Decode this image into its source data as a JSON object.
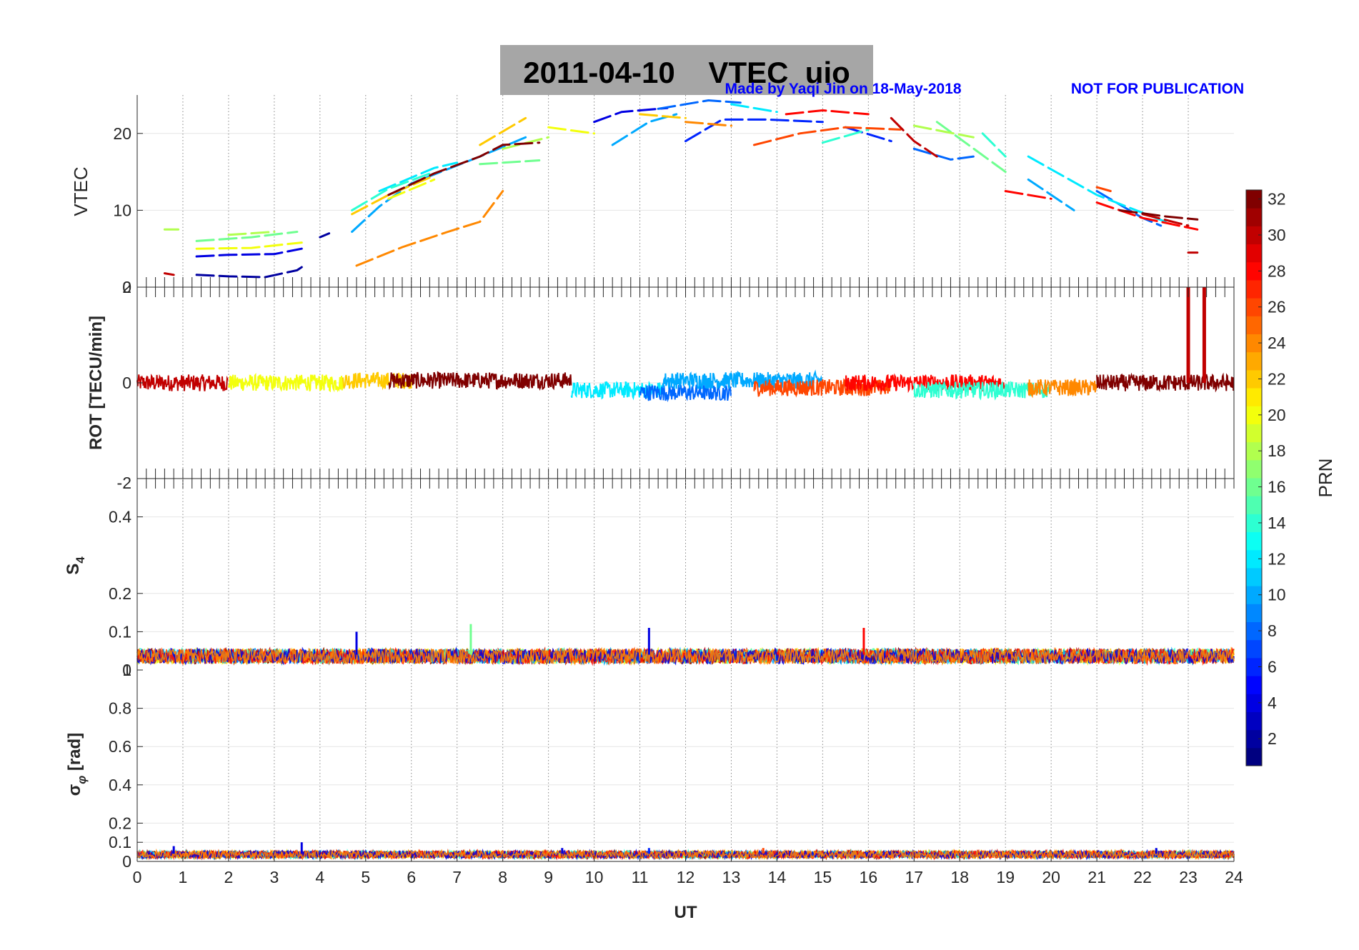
{
  "title": "2011-04-10    VTEC  uio",
  "credit": "Made by Yaqi Jin on 18-May-2018",
  "notice": "NOT FOR PUBLICATION",
  "colors": {
    "title_box": "#a6a6a6",
    "credit": "#0000ff",
    "axis": "#262626"
  },
  "chart_data": [
    {
      "type": "line",
      "panel": "VTEC",
      "ylabel": "VTEC",
      "ylim": [
        0,
        25
      ],
      "yticks": [
        0,
        10,
        20
      ],
      "ytick_labels": [
        "0",
        "10",
        "20"
      ],
      "xlim": [
        0,
        24
      ],
      "series": [
        {
          "name": "PRN 2",
          "prn": 2,
          "segments": [
            [
              [
                1.3,
                1.6
              ],
              [
                2.0,
                1.4
              ],
              [
                2.8,
                1.3
              ],
              [
                3.5,
                2.2
              ],
              [
                3.6,
                2.6
              ]
            ],
            [
              [
                4.0,
                6.5
              ],
              [
                4.2,
                7.0
              ]
            ]
          ]
        },
        {
          "name": "PRN 4",
          "prn": 4,
          "segments": [
            [
              [
                1.3,
                4.0
              ],
              [
                2.0,
                4.2
              ],
              [
                3.0,
                4.3
              ],
              [
                3.6,
                5.0
              ]
            ],
            [
              [
                10.0,
                21.5
              ],
              [
                10.6,
                22.8
              ],
              [
                11.6,
                23.3
              ]
            ]
          ]
        },
        {
          "name": "PRN 6",
          "prn": 6,
          "segments": [
            [
              [
                12.0,
                19.0
              ],
              [
                12.8,
                21.8
              ],
              [
                13.8,
                21.8
              ],
              [
                15.0,
                21.5
              ]
            ],
            [
              [
                15.5,
                20.8
              ],
              [
                16.5,
                19.0
              ]
            ]
          ]
        },
        {
          "name": "PRN 8",
          "prn": 8,
          "segments": [
            [
              [
                11.4,
                23.2
              ],
              [
                12.5,
                24.3
              ],
              [
                13.2,
                24.0
              ]
            ],
            [
              [
                17.0,
                18.0
              ],
              [
                17.8,
                16.6
              ],
              [
                18.3,
                17.0
              ]
            ],
            [
              [
                21.0,
                12.5
              ],
              [
                22.0,
                9.0
              ],
              [
                22.4,
                8.0
              ]
            ]
          ]
        },
        {
          "name": "PRN 10",
          "prn": 10,
          "segments": [
            [
              [
                4.7,
                7.2
              ],
              [
                5.3,
                10.5
              ],
              [
                6.0,
                13.5
              ],
              [
                7.5,
                17.0
              ],
              [
                8.5,
                19.5
              ]
            ],
            [
              [
                10.4,
                18.5
              ],
              [
                11.2,
                21.5
              ],
              [
                11.8,
                22.5
              ]
            ],
            [
              [
                19.5,
                14.0
              ],
              [
                20.5,
                10.0
              ]
            ]
          ]
        },
        {
          "name": "PRN 12",
          "prn": 12,
          "segments": [
            [
              [
                5.3,
                12.5
              ],
              [
                6.5,
                15.5
              ],
              [
                7.0,
                16.2
              ]
            ],
            [
              [
                13.0,
                23.8
              ],
              [
                14.0,
                22.8
              ]
            ],
            [
              [
                19.5,
                17.0
              ],
              [
                21.0,
                12.0
              ],
              [
                22.5,
                8.5
              ]
            ]
          ]
        },
        {
          "name": "PRN 14",
          "prn": 14,
          "segments": [
            [
              [
                4.7,
                10.0
              ],
              [
                5.5,
                12.8
              ],
              [
                6.5,
                15.0
              ]
            ],
            [
              [
                15.0,
                18.8
              ],
              [
                16.0,
                20.5
              ]
            ],
            [
              [
                18.5,
                20.0
              ],
              [
                19.0,
                17.0
              ]
            ]
          ]
        },
        {
          "name": "PRN 16",
          "prn": 16,
          "segments": [
            [
              [
                1.3,
                6.0
              ],
              [
                2.5,
                6.5
              ],
              [
                3.5,
                7.2
              ]
            ],
            [
              [
                7.5,
                16.0
              ],
              [
                8.8,
                16.5
              ]
            ],
            [
              [
                17.5,
                21.5
              ],
              [
                19.0,
                15.0
              ]
            ]
          ]
        },
        {
          "name": "PRN 18",
          "prn": 18,
          "segments": [
            [
              [
                0.6,
                7.5
              ],
              [
                0.9,
                7.5
              ]
            ],
            [
              [
                2.0,
                6.8
              ],
              [
                3.0,
                7.2
              ]
            ],
            [
              [
                8.0,
                18.0
              ],
              [
                9.0,
                19.5
              ]
            ],
            [
              [
                17.0,
                21.0
              ],
              [
                18.3,
                19.5
              ]
            ]
          ]
        },
        {
          "name": "PRN 20",
          "prn": 20,
          "segments": [
            [
              [
                1.3,
                5.0
              ],
              [
                2.5,
                5.1
              ],
              [
                3.6,
                5.8
              ]
            ],
            [
              [
                5.5,
                11.5
              ],
              [
                6.5,
                14.0
              ]
            ],
            [
              [
                9.0,
                20.8
              ],
              [
                10.0,
                20.0
              ]
            ]
          ]
        },
        {
          "name": "PRN 22",
          "prn": 22,
          "segments": [
            [
              [
                4.7,
                9.5
              ],
              [
                5.5,
                12.0
              ],
              [
                6.5,
                14.5
              ]
            ],
            [
              [
                7.5,
                18.5
              ],
              [
                8.5,
                22.0
              ]
            ],
            [
              [
                11.0,
                22.5
              ],
              [
                12.0,
                22.0
              ]
            ]
          ]
        },
        {
          "name": "PRN 24",
          "prn": 24,
          "segments": [
            [
              [
                4.8,
                2.8
              ],
              [
                5.8,
                5.2
              ],
              [
                6.8,
                7.2
              ],
              [
                7.5,
                8.5
              ],
              [
                8.0,
                12.5
              ]
            ],
            [
              [
                12.0,
                21.5
              ],
              [
                13.0,
                21.0
              ]
            ]
          ]
        },
        {
          "name": "PRN 26",
          "prn": 26,
          "segments": [
            [
              [
                13.5,
                18.5
              ],
              [
                14.5,
                20.0
              ],
              [
                15.5,
                20.8
              ],
              [
                16.7,
                20.5
              ]
            ],
            [
              [
                21.0,
                13.0
              ],
              [
                21.3,
                12.5
              ]
            ]
          ]
        },
        {
          "name": "PRN 28",
          "prn": 28,
          "segments": [
            [
              [
                14.2,
                22.5
              ],
              [
                15.0,
                23.0
              ],
              [
                16.0,
                22.5
              ]
            ],
            [
              [
                19.0,
                12.5
              ],
              [
                20.0,
                11.5
              ]
            ],
            [
              [
                21.0,
                11.0
              ],
              [
                22.0,
                9.0
              ],
              [
                23.2,
                7.5
              ]
            ]
          ]
        },
        {
          "name": "PRN 30",
          "prn": 30,
          "segments": [
            [
              [
                0.6,
                1.8
              ],
              [
                0.8,
                1.6
              ]
            ],
            [
              [
                16.5,
                22.0
              ],
              [
                17.0,
                19.0
              ],
              [
                17.5,
                17.0
              ]
            ],
            [
              [
                22.0,
                9.5
              ],
              [
                23.0,
                8.0
              ]
            ],
            [
              [
                23.0,
                4.5
              ],
              [
                23.2,
                4.5
              ]
            ]
          ]
        },
        {
          "name": "PRN 32",
          "prn": 32,
          "segments": [
            [
              [
                5.5,
                12.0
              ],
              [
                6.5,
                14.8
              ],
              [
                7.5,
                17.0
              ],
              [
                8.0,
                18.5
              ],
              [
                8.8,
                18.8
              ]
            ],
            [
              [
                21.5,
                10.0
              ],
              [
                22.5,
                9.2
              ],
              [
                23.2,
                8.8
              ]
            ]
          ]
        }
      ]
    },
    {
      "type": "line",
      "panel": "ROT",
      "ylabel": "ROT [TECU/min]",
      "ylim": [
        -2,
        2
      ],
      "yticks": [
        -2,
        0,
        2
      ],
      "ytick_labels": [
        "-2",
        "0",
        "2"
      ],
      "xlim": [
        0,
        24
      ],
      "baseline_note": "dense noise around 0 for all PRNs, amplitude about 0.1-0.3",
      "bands": [
        {
          "prn": 30,
          "x": [
            0.0,
            2.0
          ],
          "level": 0.0
        },
        {
          "prn": 20,
          "x": [
            2.0,
            4.5
          ],
          "level": 0.0
        },
        {
          "prn": 22,
          "x": [
            4.5,
            6.0
          ],
          "level": 0.05
        },
        {
          "prn": 32,
          "x": [
            5.5,
            9.5
          ],
          "level": 0.05
        },
        {
          "prn": 12,
          "x": [
            9.5,
            11.5
          ],
          "level": -0.15
        },
        {
          "prn": 8,
          "x": [
            11.0,
            13.0
          ],
          "level": -0.2
        },
        {
          "prn": 10,
          "x": [
            11.5,
            15.0
          ],
          "level": 0.05
        },
        {
          "prn": 26,
          "x": [
            13.5,
            16.5
          ],
          "level": -0.1
        },
        {
          "prn": 28,
          "x": [
            15.5,
            19.0
          ],
          "level": 0.0
        },
        {
          "prn": 14,
          "x": [
            17.0,
            20.0
          ],
          "level": -0.15
        },
        {
          "prn": 24,
          "x": [
            19.5,
            21.0
          ],
          "level": -0.1
        },
        {
          "prn": 32,
          "x": [
            21.0,
            24.0
          ],
          "level": 0.0
        }
      ],
      "spikes": [
        {
          "prn": 30,
          "x": 23.0,
          "value": 2.0
        },
        {
          "prn": 30,
          "x": 23.35,
          "value": 2.0
        }
      ]
    },
    {
      "type": "line",
      "panel": "S4",
      "ylabel": "S4",
      "ylim": [
        0,
        0.5
      ],
      "yticks": [
        0,
        0.1,
        0.2,
        0.4
      ],
      "ytick_labels": [
        "0",
        "0.1",
        "0.2",
        "0.4"
      ],
      "xlim": [
        0,
        24
      ],
      "baseline_level": 0.04,
      "peaks": [
        {
          "prn": 4,
          "x": 4.8,
          "value": 0.1
        },
        {
          "prn": 16,
          "x": 7.3,
          "value": 0.12
        },
        {
          "prn": 4,
          "x": 11.2,
          "value": 0.11
        },
        {
          "prn": 28,
          "x": 15.9,
          "value": 0.11
        }
      ]
    },
    {
      "type": "line",
      "panel": "sigma_phi",
      "ylabel": "σφ [rad]",
      "ylim": [
        0,
        1
      ],
      "yticks": [
        0,
        0.1,
        0.2,
        0.4,
        0.6,
        0.8,
        1
      ],
      "ytick_labels": [
        "0",
        "0.1",
        "0.2",
        "0.4",
        "0.6",
        "0.8",
        "1"
      ],
      "xlim": [
        0,
        24
      ],
      "xlabel": "UT",
      "xticks": [
        0,
        1,
        2,
        3,
        4,
        5,
        6,
        7,
        8,
        9,
        10,
        11,
        12,
        13,
        14,
        15,
        16,
        17,
        18,
        19,
        20,
        21,
        22,
        23,
        24
      ],
      "xtick_labels": [
        "0",
        "1",
        "2",
        "3",
        "4",
        "5",
        "6",
        "7",
        "8",
        "9",
        "10",
        "11",
        "12",
        "13",
        "14",
        "15",
        "16",
        "17",
        "18",
        "19",
        "20",
        "21",
        "22",
        "23",
        "24"
      ],
      "baseline_level": 0.04,
      "peaks": [
        {
          "prn": 4,
          "x": 0.8,
          "value": 0.08
        },
        {
          "prn": 4,
          "x": 3.6,
          "value": 0.1
        },
        {
          "prn": 4,
          "x": 9.3,
          "value": 0.07
        },
        {
          "prn": 6,
          "x": 11.2,
          "value": 0.07
        },
        {
          "prn": 26,
          "x": 13.7,
          "value": 0.07
        },
        {
          "prn": 4,
          "x": 22.3,
          "value": 0.07
        }
      ]
    }
  ],
  "colorbar": {
    "label": "PRN",
    "range": [
      1,
      32
    ],
    "ticks": [
      "2",
      "4",
      "6",
      "8",
      "10",
      "12",
      "14",
      "16",
      "18",
      "20",
      "22",
      "24",
      "26",
      "28",
      "30",
      "32"
    ],
    "colormap": "jet"
  }
}
